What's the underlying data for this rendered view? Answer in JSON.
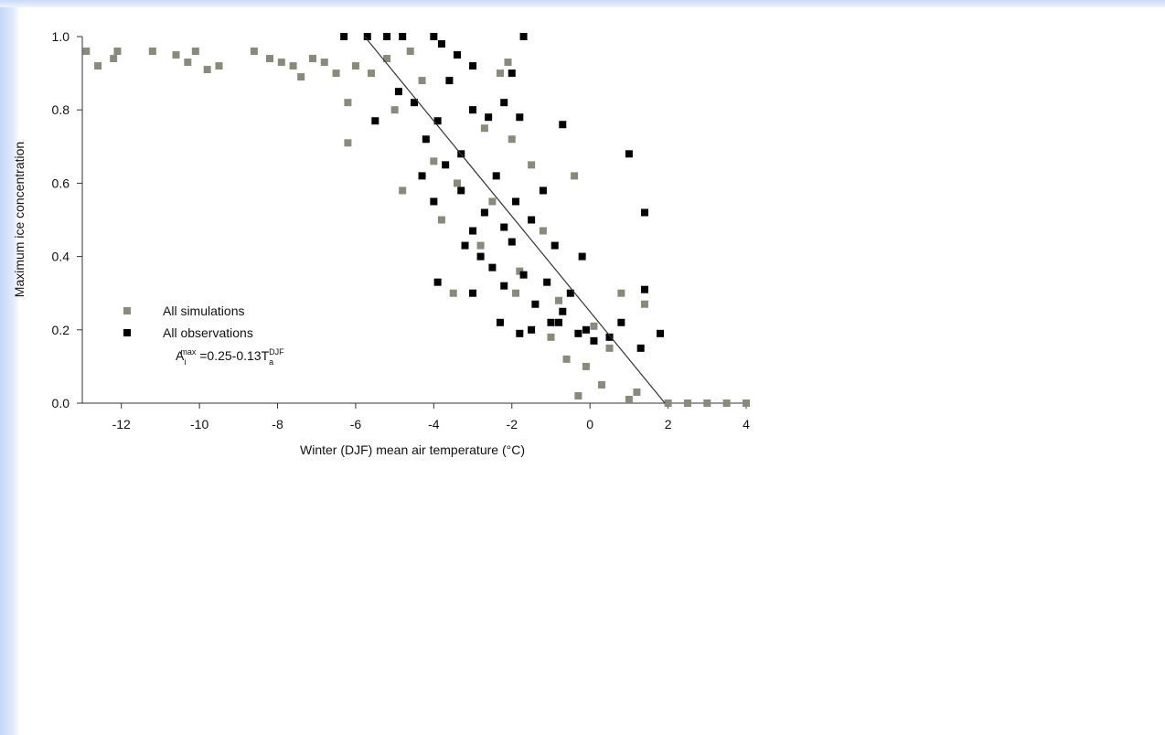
{
  "chart_data": {
    "type": "scatter",
    "xlabel": "Winter (DJF) mean air temperature (°C)",
    "ylabel": "Maximum ice concentration",
    "xlim": [
      -13,
      4
    ],
    "ylim": [
      0,
      1
    ],
    "xticks": [
      -12,
      -10,
      -8,
      -6,
      -4,
      -2,
      0,
      2,
      4
    ],
    "yticks": [
      {
        "value": 0,
        "label": "0.0"
      },
      0.2,
      0.4,
      0.6,
      0.8,
      {
        "value": 1,
        "label": "1.0"
      }
    ],
    "series": [
      {
        "name": "All simulations",
        "color": "#8a8a7a",
        "x": [
          -12.9,
          -12.6,
          -12.2,
          -12.1,
          -11.2,
          -10.6,
          -10.3,
          -10.1,
          -9.8,
          -9.5,
          -8.6,
          -8.2,
          -7.9,
          -7.6,
          -7.4,
          -7.1,
          -6.8,
          -6.5,
          -6.2,
          -6.2,
          -6.0,
          -5.6,
          -5.2,
          -5.0,
          -4.8,
          -4.6,
          -4.3,
          -4.0,
          -3.8,
          -3.4,
          -3.0,
          -2.7,
          -2.5,
          -2.3,
          -2.1,
          -2.0,
          -1.8,
          -1.5,
          -1.2,
          -1.0,
          -0.8,
          -0.6,
          -0.4,
          -0.3,
          -0.1,
          0.1,
          0.3,
          0.5,
          0.8,
          1.0,
          1.4,
          1.2,
          2.0,
          2.5,
          3.0,
          3.5,
          4.0,
          -3.5,
          -2.8,
          -1.9
        ],
        "values": [
          0.96,
          0.92,
          0.94,
          0.96,
          0.96,
          0.95,
          0.93,
          0.96,
          0.91,
          0.92,
          0.96,
          0.94,
          0.93,
          0.92,
          0.89,
          0.94,
          0.93,
          0.9,
          0.82,
          0.71,
          0.92,
          0.9,
          0.94,
          0.8,
          0.58,
          0.96,
          0.88,
          0.66,
          0.5,
          0.6,
          0.8,
          0.75,
          0.55,
          0.9,
          0.93,
          0.72,
          0.36,
          0.65,
          0.47,
          0.18,
          0.28,
          0.12,
          0.62,
          0.02,
          0.1,
          0.21,
          0.05,
          0.15,
          0.3,
          0.01,
          0.27,
          0.03,
          0,
          0,
          0,
          0,
          0,
          0.3,
          0.43,
          0.3
        ]
      },
      {
        "name": "All observations",
        "color": "#000000",
        "x": [
          -6.3,
          -5.7,
          -5.2,
          -4.8,
          -4.0,
          -3.8,
          -3.4,
          -3.0,
          -2.0,
          -1.7,
          -5.5,
          -4.9,
          -4.5,
          -4.2,
          -3.9,
          -3.6,
          -3.3,
          -3.0,
          -2.6,
          -2.2,
          -1.8,
          -0.7,
          -4.3,
          -4.0,
          -3.7,
          -3.3,
          -3.0,
          -2.7,
          -2.4,
          -2.2,
          -1.9,
          -1.5,
          -1.2,
          -0.9,
          -3.9,
          -3.2,
          -2.8,
          -2.5,
          -2.2,
          -2.0,
          -1.7,
          -1.4,
          -1.1,
          -0.8,
          -0.5,
          -0.2,
          -3.0,
          -2.3,
          -1.8,
          -1.5,
          -1.0,
          -0.7,
          -0.3,
          0.1,
          0.5,
          0.8,
          1.0,
          1.4,
          1.4,
          1.8,
          1.3,
          -0.1
        ],
        "values": [
          1.0,
          1.0,
          1.0,
          1.0,
          1.0,
          0.98,
          0.95,
          0.92,
          0.9,
          1.0,
          0.77,
          0.85,
          0.82,
          0.72,
          0.77,
          0.88,
          0.68,
          0.8,
          0.78,
          0.82,
          0.78,
          0.76,
          0.62,
          0.55,
          0.65,
          0.58,
          0.47,
          0.52,
          0.62,
          0.48,
          0.55,
          0.5,
          0.58,
          0.43,
          0.33,
          0.43,
          0.4,
          0.37,
          0.32,
          0.44,
          0.35,
          0.27,
          0.33,
          0.22,
          0.3,
          0.4,
          0.3,
          0.22,
          0.19,
          0.2,
          0.22,
          0.25,
          0.19,
          0.17,
          0.18,
          0.22,
          0.68,
          0.52,
          0.31,
          0.19,
          0.15,
          0.2
        ]
      }
    ],
    "fit": {
      "x": [
        -5.77,
        1.92
      ],
      "values": [
        1,
        0
      ],
      "color": "#333333"
    },
    "formula": [
      "A",
      "i",
      "max",
      " =0.25-0.13T",
      "a",
      "DJF"
    ]
  }
}
